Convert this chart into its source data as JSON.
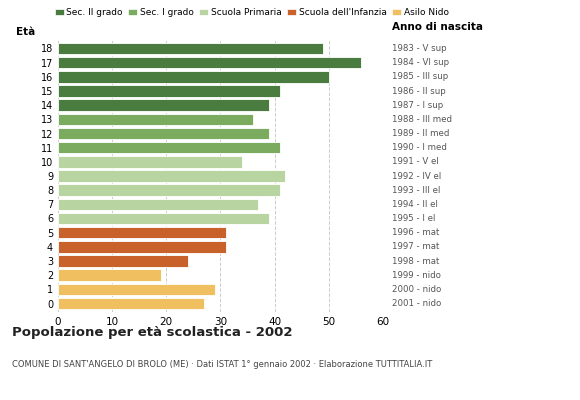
{
  "ages": [
    18,
    17,
    16,
    15,
    14,
    13,
    12,
    11,
    10,
    9,
    8,
    7,
    6,
    5,
    4,
    3,
    2,
    1,
    0
  ],
  "values": [
    49,
    56,
    50,
    41,
    39,
    36,
    39,
    41,
    34,
    42,
    41,
    37,
    39,
    31,
    31,
    24,
    19,
    29,
    27
  ],
  "colors": [
    "#4a7c3f",
    "#4a7c3f",
    "#4a7c3f",
    "#4a7c3f",
    "#4a7c3f",
    "#7aab5e",
    "#7aab5e",
    "#7aab5e",
    "#b8d4a0",
    "#b8d4a0",
    "#b8d4a0",
    "#b8d4a0",
    "#b8d4a0",
    "#c8622a",
    "#c8622a",
    "#c8622a",
    "#f0c060",
    "#f0c060",
    "#f0c060"
  ],
  "right_labels": [
    "1983 - V sup",
    "1984 - VI sup",
    "1985 - III sup",
    "1986 - II sup",
    "1987 - I sup",
    "1988 - III med",
    "1989 - II med",
    "1990 - I med",
    "1991 - V el",
    "1992 - IV el",
    "1993 - III el",
    "1994 - II el",
    "1995 - I el",
    "1996 - mat",
    "1997 - mat",
    "1998 - mat",
    "1999 - nido",
    "2000 - nido",
    "2001 - nido"
  ],
  "legend_labels": [
    "Sec. II grado",
    "Sec. I grado",
    "Scuola Primaria",
    "Scuola dell'Infanzia",
    "Asilo Nido"
  ],
  "legend_colors": [
    "#4a7c3f",
    "#7aab5e",
    "#b8d4a0",
    "#c8622a",
    "#f0c060"
  ],
  "xlabel_age": "Età",
  "xlabel_year": "Anno di nascita",
  "title": "Popolazione per età scolastica - 2002",
  "subtitle": "COMUNE DI SANT'ANGELO DI BROLO (ME) · Dati ISTAT 1° gennaio 2002 · Elaborazione TUTTITALIA.IT",
  "xlim": [
    0,
    60
  ],
  "xticks": [
    0,
    10,
    20,
    30,
    40,
    50,
    60
  ],
  "bar_height": 0.82,
  "background_color": "#ffffff",
  "grid_color": "#cccccc"
}
